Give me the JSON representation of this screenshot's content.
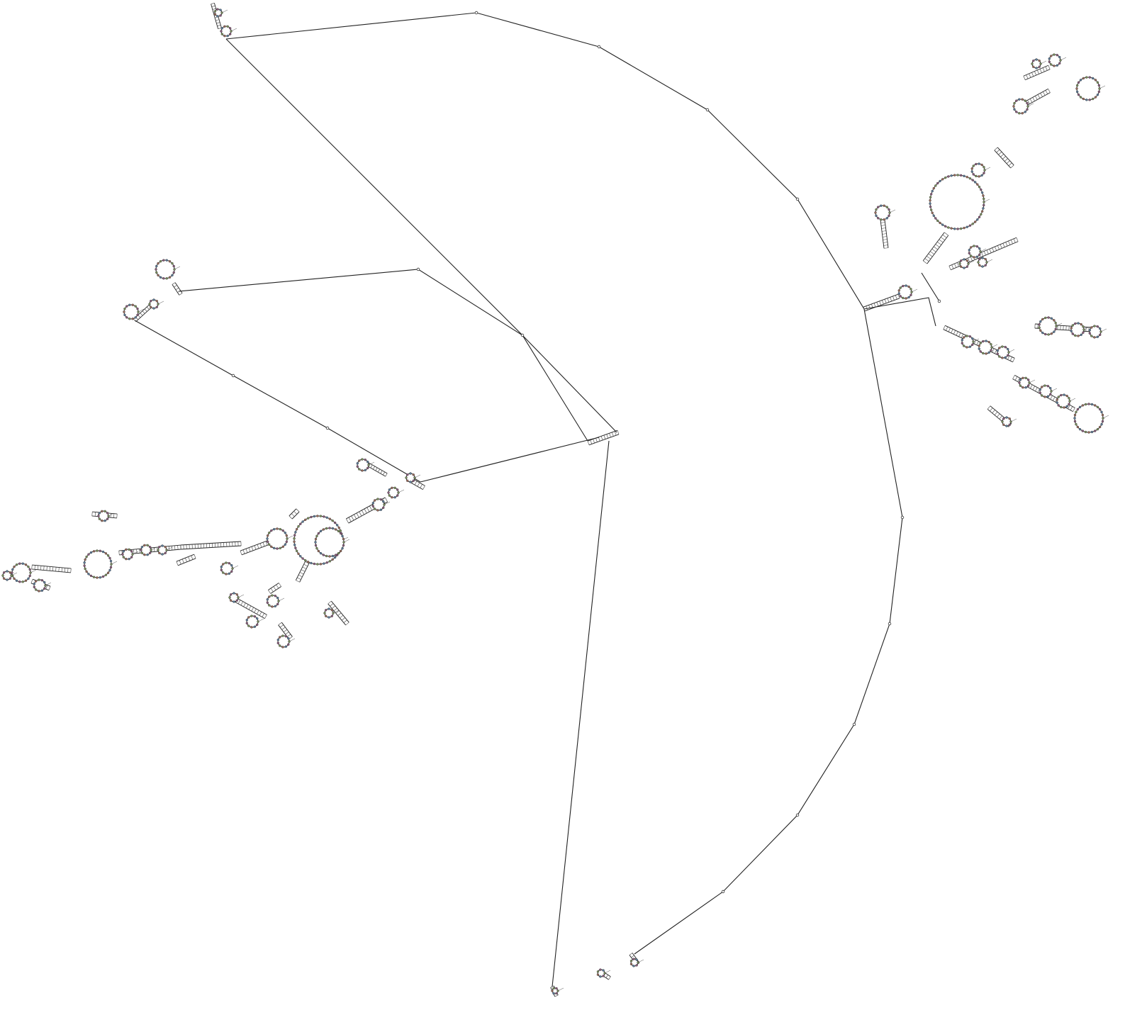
{
  "diagram": {
    "kind": "rna-secondary-structure",
    "background": "#ffffff",
    "line_color": "#222222",
    "nucleotide_colors": {
      "A": "#7a8f5a",
      "C": "#8a5a7a",
      "G": "#5a7a9a",
      "U": "#9a6a5a"
    }
  }
}
